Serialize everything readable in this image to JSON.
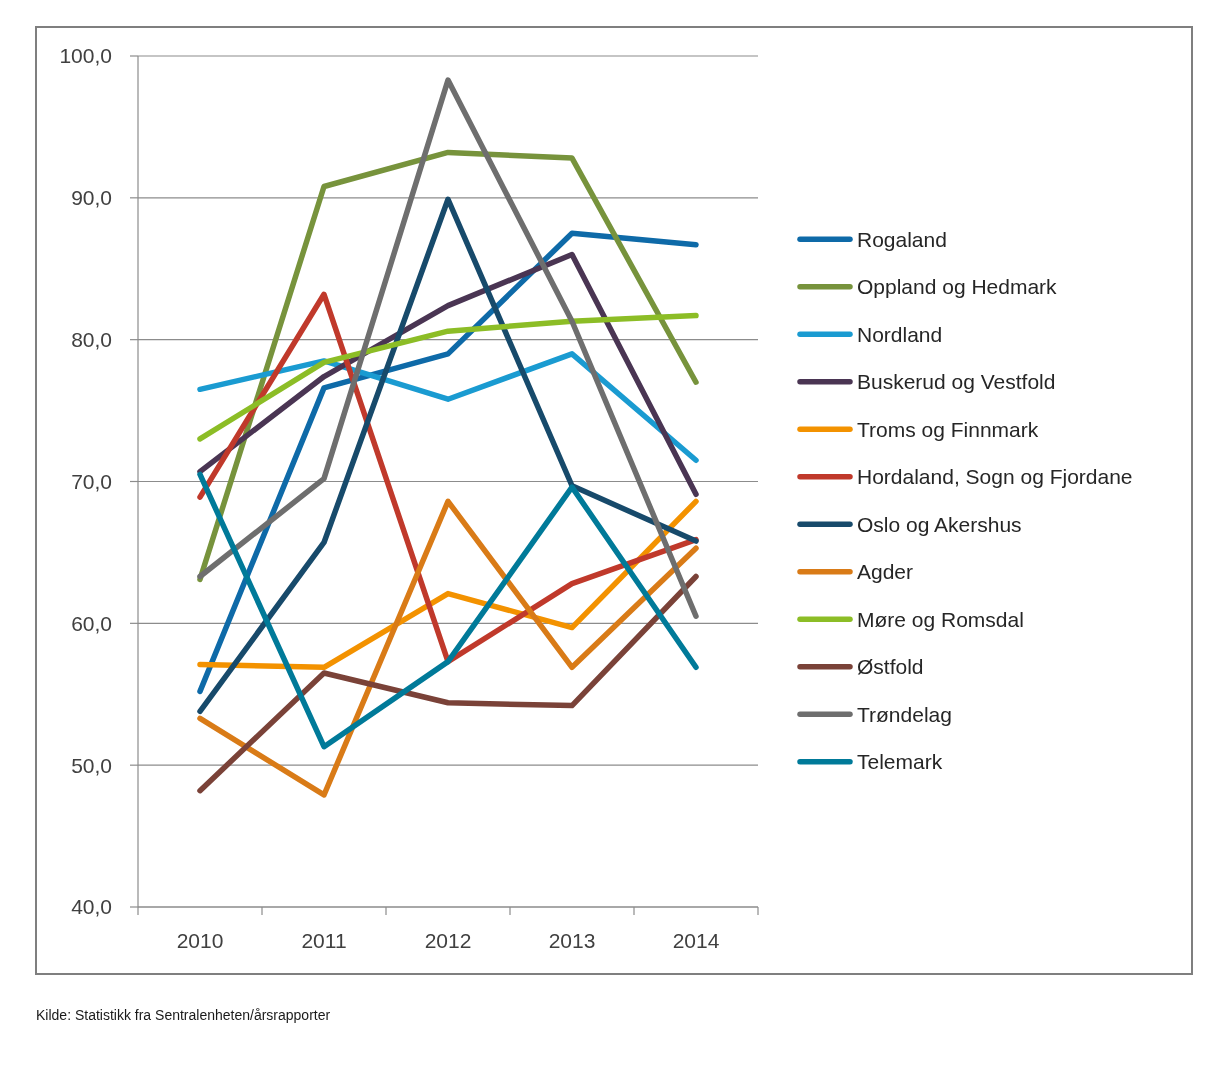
{
  "chart_data": {
    "type": "line",
    "categories": [
      "2010",
      "2011",
      "2012",
      "2013",
      "2014"
    ],
    "series": [
      {
        "name": "Rogaland",
        "color": "#0e6aa8",
        "values": [
          55.2,
          76.6,
          79.0,
          87.5,
          86.7
        ]
      },
      {
        "name": "Oppland og Hedmark",
        "color": "#77933c",
        "values": [
          63.1,
          90.8,
          93.2,
          92.8,
          77.0
        ]
      },
      {
        "name": "Nordland",
        "color": "#1a9bd1",
        "values": [
          76.5,
          78.5,
          75.8,
          79.0,
          71.5
        ]
      },
      {
        "name": "Buskerud og Vestfold",
        "color": "#4a3553",
        "values": [
          70.7,
          77.4,
          82.4,
          86.0,
          69.1
        ]
      },
      {
        "name": "Troms og Finnmark",
        "color": "#f39200",
        "values": [
          57.1,
          56.9,
          62.1,
          59.7,
          68.6
        ]
      },
      {
        "name": "Hordaland, Sogn og Fjordane",
        "color": "#c0392b",
        "values": [
          68.9,
          83.2,
          57.3,
          62.8,
          65.9
        ]
      },
      {
        "name": "Oslo og Akershus",
        "color": "#174a6b",
        "values": [
          53.8,
          65.7,
          89.9,
          69.7,
          65.8
        ]
      },
      {
        "name": "Agder",
        "color": "#d97b17",
        "values": [
          53.3,
          47.9,
          68.6,
          56.9,
          65.3
        ]
      },
      {
        "name": "Møre og Romsdal",
        "color": "#8cbd26",
        "values": [
          73.0,
          78.4,
          80.6,
          81.3,
          81.7
        ]
      },
      {
        "name": "Østfold",
        "color": "#7a4238",
        "values": [
          48.2,
          56.5,
          54.4,
          54.2,
          63.3
        ]
      },
      {
        "name": "Trøndelag",
        "color": "#6e6e6e",
        "values": [
          63.3,
          70.2,
          98.3,
          81.3,
          60.5
        ]
      },
      {
        "name": "Telemark",
        "color": "#007a99",
        "values": [
          70.5,
          51.3,
          57.3,
          69.6,
          56.9
        ]
      }
    ],
    "ylim": [
      40,
      100
    ],
    "yticks": [
      {
        "value": 40,
        "label": "40,0"
      },
      {
        "value": 50,
        "label": "50,0"
      },
      {
        "value": 60,
        "label": "60,0"
      },
      {
        "value": 70,
        "label": "70,0"
      },
      {
        "value": 80,
        "label": "80,0"
      },
      {
        "value": 90,
        "label": "90,0"
      },
      {
        "value": 100,
        "label": "100,0"
      }
    ],
    "grid": "y",
    "legend": "right",
    "annotations": [
      "Kilde: Statistikk fra Sentralenheten/årsrapporter"
    ]
  }
}
